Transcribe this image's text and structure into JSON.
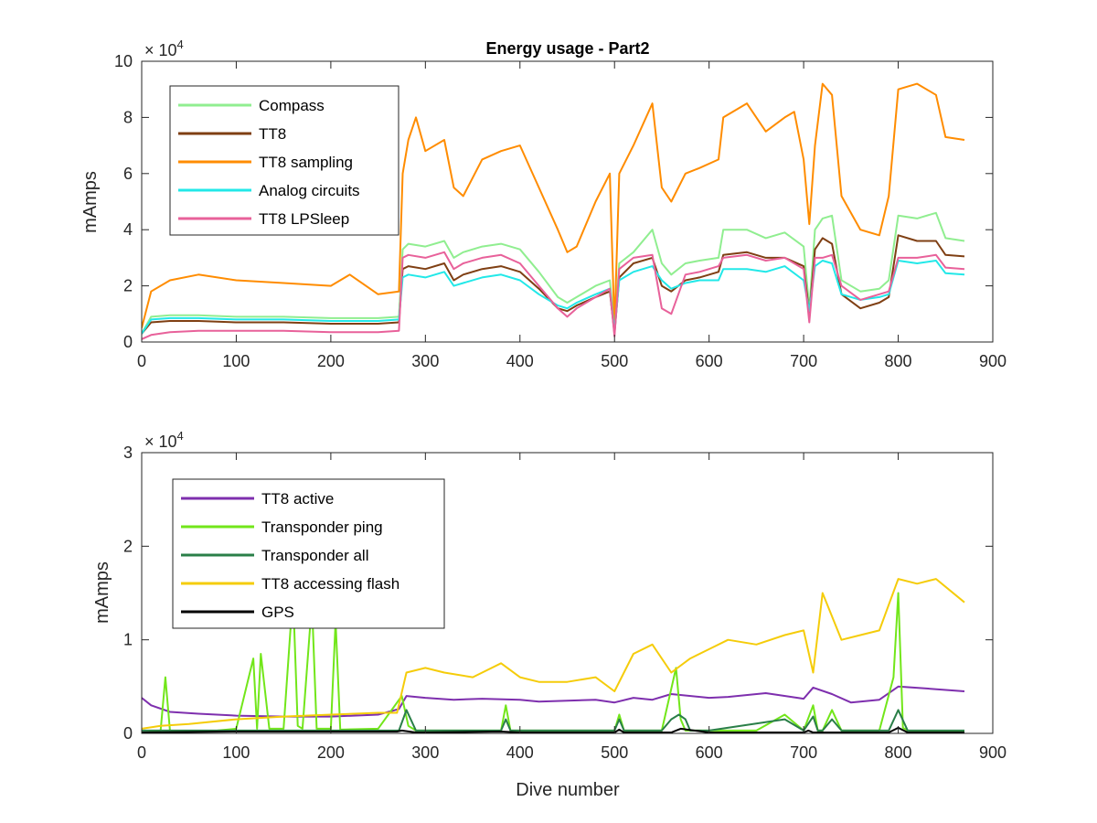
{
  "chart_data": [
    {
      "type": "line",
      "title": "Energy usage - Part2",
      "xlabel": "",
      "ylabel": "mAmps",
      "xlim": [
        0,
        900
      ],
      "ylim": [
        0,
        100000
      ],
      "x_ticks": [
        "0",
        "100",
        "200",
        "300",
        "400",
        "500",
        "600",
        "700",
        "800",
        "900"
      ],
      "y_ticks": [
        "0",
        "2",
        "4",
        "6",
        "8",
        "10"
      ],
      "y_exponent": {
        "base": "× 10",
        "power": "4"
      },
      "legend_position": "top-left",
      "grid": false,
      "series": [
        {
          "name": "Compass",
          "color": "#90ee90",
          "x": [
            0,
            10,
            30,
            60,
            100,
            150,
            200,
            250,
            272,
            276,
            282,
            300,
            320,
            330,
            340,
            360,
            380,
            400,
            420,
            440,
            450,
            460,
            480,
            495,
            500,
            505,
            520,
            540,
            550,
            560,
            575,
            590,
            610,
            615,
            640,
            660,
            680,
            700,
            706,
            712,
            720,
            730,
            740,
            760,
            780,
            790,
            800,
            820,
            840,
            850,
            870
          ],
          "y": [
            3000,
            9000,
            9500,
            9500,
            9000,
            9000,
            8500,
            8500,
            9000,
            33000,
            35000,
            34000,
            36000,
            30000,
            32000,
            34000,
            35000,
            33000,
            25000,
            16000,
            14000,
            16000,
            20000,
            22000,
            5000,
            28000,
            32000,
            40000,
            28000,
            24000,
            28000,
            29000,
            30000,
            40000,
            40000,
            37000,
            39000,
            34000,
            12000,
            40000,
            44000,
            45000,
            22000,
            18000,
            19000,
            22000,
            45000,
            44000,
            46000,
            37000,
            36000
          ]
        },
        {
          "name": "TT8",
          "color": "#7f3f13",
          "x": [
            0,
            10,
            30,
            60,
            100,
            150,
            200,
            250,
            272,
            276,
            282,
            300,
            320,
            330,
            340,
            360,
            380,
            400,
            420,
            440,
            450,
            460,
            480,
            495,
            500,
            505,
            520,
            540,
            550,
            560,
            575,
            590,
            610,
            615,
            640,
            660,
            680,
            700,
            706,
            712,
            720,
            730,
            740,
            760,
            780,
            790,
            800,
            820,
            840,
            850,
            870
          ],
          "y": [
            3000,
            7000,
            7500,
            7500,
            7000,
            7000,
            6500,
            6500,
            7000,
            26000,
            27000,
            26000,
            28000,
            22000,
            24000,
            26000,
            27000,
            25000,
            19000,
            12000,
            11000,
            13000,
            16000,
            18000,
            3000,
            23000,
            28000,
            30000,
            20000,
            18000,
            22000,
            23000,
            25000,
            31000,
            32000,
            30000,
            30000,
            27000,
            10000,
            33000,
            37000,
            35000,
            17000,
            12000,
            14000,
            16000,
            38000,
            36000,
            36000,
            31000,
            30500
          ]
        },
        {
          "name": "TT8 sampling",
          "color": "#ff8c00",
          "x": [
            0,
            10,
            30,
            60,
            100,
            150,
            200,
            220,
            250,
            272,
            276,
            282,
            290,
            300,
            320,
            330,
            340,
            360,
            380,
            400,
            420,
            440,
            450,
            460,
            480,
            495,
            500,
            505,
            520,
            540,
            550,
            560,
            575,
            590,
            610,
            615,
            640,
            660,
            680,
            690,
            700,
            706,
            712,
            720,
            730,
            740,
            760,
            780,
            790,
            800,
            820,
            840,
            850,
            870
          ],
          "y": [
            5000,
            18000,
            22000,
            24000,
            22000,
            21000,
            20000,
            24000,
            17000,
            18000,
            60000,
            72000,
            80000,
            68000,
            72000,
            55000,
            52000,
            65000,
            68000,
            70000,
            55000,
            40000,
            32000,
            34000,
            50000,
            60000,
            5000,
            60000,
            70000,
            85000,
            55000,
            50000,
            60000,
            62000,
            65000,
            80000,
            85000,
            75000,
            80000,
            82000,
            65000,
            42000,
            70000,
            92000,
            88000,
            52000,
            40000,
            38000,
            52000,
            90000,
            92000,
            88000,
            73000,
            72000
          ]
        },
        {
          "name": "Analog circuits",
          "color": "#22e8e8",
          "x": [
            0,
            10,
            30,
            60,
            100,
            150,
            200,
            250,
            272,
            276,
            282,
            300,
            320,
            330,
            340,
            360,
            380,
            400,
            420,
            440,
            450,
            460,
            480,
            495,
            500,
            505,
            520,
            540,
            550,
            560,
            575,
            590,
            610,
            615,
            640,
            660,
            680,
            700,
            706,
            712,
            720,
            730,
            740,
            760,
            780,
            790,
            800,
            820,
            840,
            850,
            870
          ],
          "y": [
            3000,
            8000,
            8500,
            8500,
            8000,
            8000,
            7500,
            7500,
            8000,
            23000,
            24000,
            23000,
            25000,
            20000,
            21000,
            23000,
            24000,
            22000,
            17000,
            13000,
            12000,
            14000,
            17000,
            19000,
            4000,
            22000,
            25000,
            27000,
            22000,
            19000,
            21000,
            22000,
            22000,
            26000,
            26000,
            25000,
            27000,
            22000,
            11000,
            27000,
            29000,
            28000,
            17000,
            15000,
            16000,
            17000,
            29000,
            28000,
            29000,
            24500,
            24000
          ]
        },
        {
          "name": "TT8 LPSleep",
          "color": "#e8619a",
          "x": [
            0,
            10,
            30,
            60,
            100,
            150,
            200,
            250,
            272,
            276,
            282,
            300,
            320,
            330,
            340,
            360,
            380,
            400,
            420,
            440,
            450,
            460,
            480,
            495,
            500,
            505,
            520,
            540,
            550,
            560,
            575,
            590,
            610,
            615,
            640,
            660,
            680,
            700,
            706,
            712,
            720,
            730,
            740,
            760,
            780,
            790,
            800,
            820,
            840,
            850,
            870
          ],
          "y": [
            1000,
            2500,
            3500,
            4000,
            4000,
            4000,
            3500,
            3500,
            4000,
            30000,
            31000,
            30000,
            32000,
            26000,
            28000,
            30000,
            31000,
            28000,
            20000,
            12000,
            9000,
            12000,
            16000,
            19000,
            2000,
            26000,
            30000,
            31000,
            12000,
            10000,
            24000,
            25000,
            27000,
            30000,
            31000,
            29000,
            30000,
            26000,
            7000,
            30000,
            30000,
            31000,
            20000,
            15000,
            17000,
            18000,
            30000,
            30000,
            31000,
            26500,
            26000
          ]
        }
      ]
    },
    {
      "type": "line",
      "title": "",
      "xlabel": "Dive number",
      "ylabel": "mAmps",
      "xlim": [
        0,
        900
      ],
      "ylim": [
        0,
        30000
      ],
      "x_ticks": [
        "0",
        "100",
        "200",
        "300",
        "400",
        "500",
        "600",
        "700",
        "800",
        "900"
      ],
      "y_ticks": [
        "0",
        "1",
        "2",
        "3"
      ],
      "y_exponent": {
        "base": "× 10",
        "power": "4"
      },
      "legend_position": "top-left",
      "grid": false,
      "series": [
        {
          "name": "TT8 active",
          "color": "#7e2fae",
          "x": [
            0,
            10,
            30,
            60,
            100,
            150,
            200,
            250,
            272,
            280,
            300,
            330,
            360,
            400,
            420,
            450,
            480,
            500,
            520,
            540,
            560,
            600,
            620,
            660,
            700,
            710,
            730,
            750,
            780,
            800,
            830,
            870
          ],
          "y": [
            3800,
            3000,
            2300,
            2100,
            1900,
            1800,
            1800,
            2000,
            2600,
            4000,
            3800,
            3600,
            3700,
            3600,
            3400,
            3500,
            3600,
            3300,
            3800,
            3600,
            4200,
            3800,
            3900,
            4300,
            3700,
            4900,
            4200,
            3300,
            3600,
            5000,
            4800,
            4500
          ]
        },
        {
          "name": "Transponder ping",
          "color": "#72e61a",
          "x": [
            0,
            20,
            25,
            30,
            80,
            100,
            118,
            122,
            126,
            135,
            150,
            160,
            165,
            170,
            180,
            185,
            190,
            200,
            205,
            210,
            250,
            275,
            282,
            290,
            350,
            380,
            385,
            390,
            420,
            450,
            500,
            505,
            510,
            520,
            550,
            565,
            570,
            575,
            600,
            650,
            680,
            700,
            710,
            715,
            720,
            730,
            740,
            780,
            795,
            800,
            805,
            810,
            870
          ],
          "y": [
            0,
            300,
            6000,
            200,
            300,
            500,
            8000,
            500,
            8500,
            500,
            500,
            15000,
            800,
            500,
            14000,
            500,
            500,
            500,
            12000,
            400,
            500,
            4000,
            800,
            300,
            300,
            300,
            3000,
            300,
            300,
            300,
            300,
            2000,
            300,
            300,
            300,
            7000,
            1500,
            300,
            300,
            300,
            2000,
            300,
            3000,
            300,
            300,
            2500,
            300,
            300,
            6000,
            15000,
            600,
            300,
            200
          ]
        },
        {
          "name": "Transponder all",
          "color": "#2a7f48",
          "x": [
            0,
            100,
            200,
            272,
            280,
            290,
            300,
            380,
            385,
            390,
            420,
            500,
            505,
            510,
            550,
            560,
            568,
            575,
            580,
            600,
            680,
            700,
            710,
            715,
            720,
            730,
            740,
            790,
            800,
            810,
            820,
            870
          ],
          "y": [
            300,
            300,
            300,
            300,
            2500,
            300,
            300,
            300,
            1500,
            300,
            300,
            300,
            1500,
            300,
            300,
            1500,
            2000,
            1500,
            300,
            300,
            1500,
            300,
            1800,
            300,
            300,
            1500,
            300,
            300,
            2500,
            300,
            300,
            300
          ]
        },
        {
          "name": "TT8 accessing flash",
          "color": "#f5cc0a",
          "x": [
            0,
            20,
            50,
            100,
            150,
            200,
            250,
            270,
            280,
            300,
            320,
            350,
            380,
            400,
            420,
            450,
            480,
            500,
            520,
            540,
            560,
            580,
            600,
            620,
            650,
            680,
            700,
            710,
            720,
            740,
            760,
            780,
            800,
            820,
            840,
            870
          ],
          "y": [
            500,
            800,
            1000,
            1500,
            1800,
            2000,
            2200,
            2200,
            6500,
            7000,
            6500,
            6000,
            7500,
            6000,
            5500,
            5500,
            6000,
            4500,
            8500,
            9500,
            6500,
            8000,
            9000,
            10000,
            9500,
            10500,
            11000,
            6500,
            15000,
            10000,
            10500,
            11000,
            16500,
            16000,
            16500,
            14000
          ]
        },
        {
          "name": "GPS",
          "color": "#000000",
          "x": [
            0,
            100,
            200,
            270,
            275,
            290,
            300,
            380,
            400,
            500,
            505,
            510,
            560,
            570,
            600,
            700,
            705,
            710,
            790,
            800,
            810,
            870
          ],
          "y": [
            100,
            200,
            200,
            200,
            300,
            100,
            100,
            200,
            100,
            100,
            400,
            100,
            100,
            500,
            100,
            100,
            300,
            100,
            100,
            600,
            100,
            100
          ]
        }
      ]
    }
  ]
}
